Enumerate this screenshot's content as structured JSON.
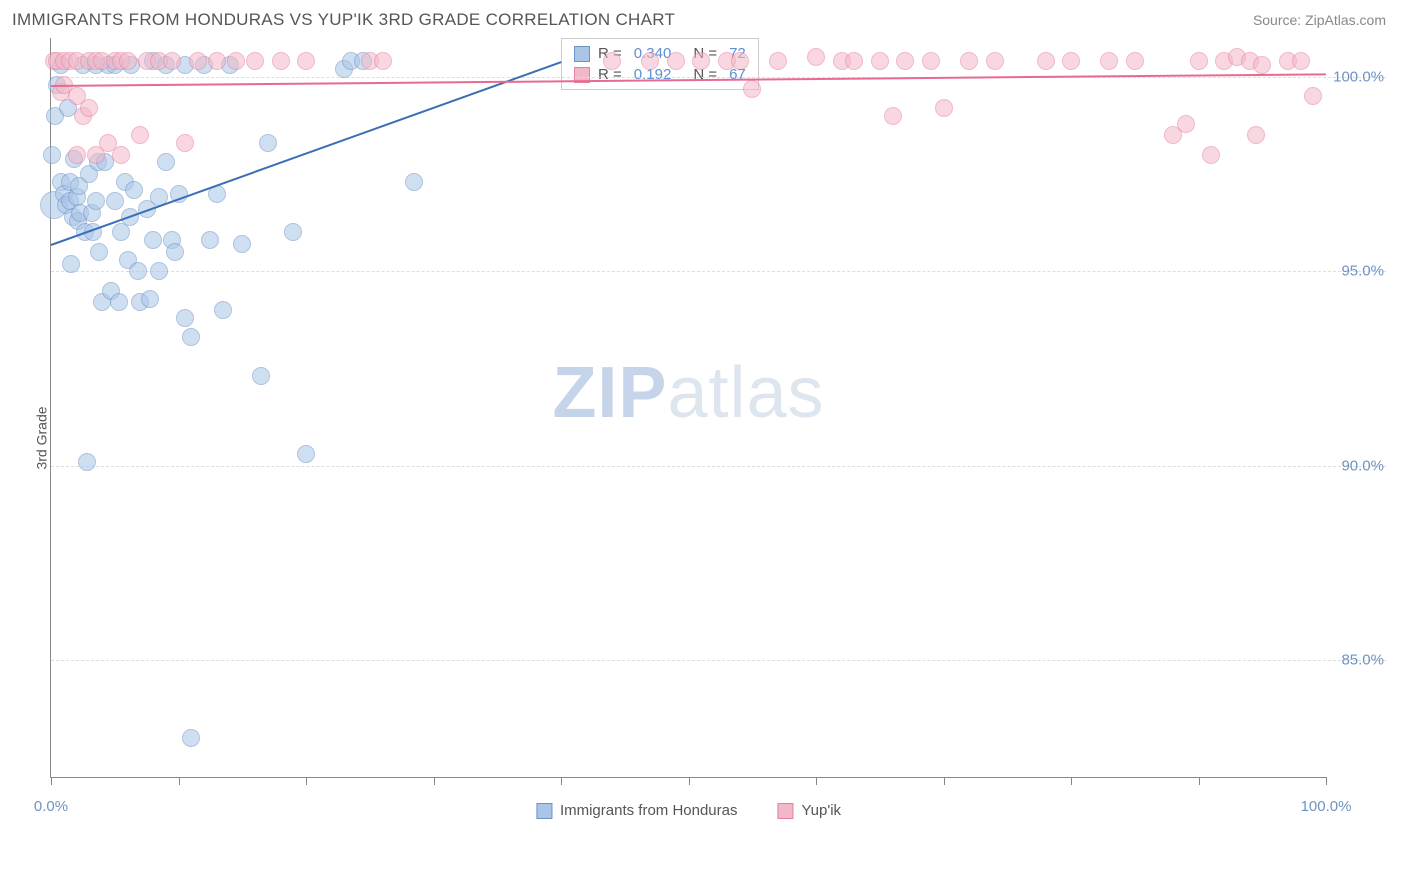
{
  "header": {
    "title": "IMMIGRANTS FROM HONDURAS VS YUP'IK 3RD GRADE CORRELATION CHART",
    "source": "Source: ZipAtlas.com"
  },
  "watermark": {
    "part1": "ZIP",
    "part2": "atlas"
  },
  "chart": {
    "type": "scatter-with-trend",
    "ylabel": "3rd Grade",
    "xlim": [
      0,
      100
    ],
    "ylim": [
      82,
      101
    ],
    "x_ticks": [
      0,
      10,
      20,
      30,
      40,
      50,
      60,
      70,
      80,
      90,
      100
    ],
    "x_tick_labels": {
      "0": "0.0%",
      "100": "100.0%"
    },
    "y_grid": [
      85,
      90,
      95,
      100
    ],
    "y_tick_labels": {
      "85": "85.0%",
      "90": "90.0%",
      "95": "95.0%",
      "100": "100.0%"
    },
    "background_color": "#ffffff",
    "grid_color": "#dddddd",
    "axis_color": "#888888",
    "series": [
      {
        "id": "honduras",
        "label": "Immigrants from Honduras",
        "fill": "#a9c5e8",
        "stroke": "#6d93c4",
        "fill_opacity": 0.55,
        "marker_radius": 9,
        "trend": {
          "x1": 0,
          "y1": 95.7,
          "x2": 40,
          "y2": 100.4,
          "color": "#3b6fb5",
          "width": 2
        },
        "R": "0.340",
        "N": "72",
        "points": [
          [
            0.1,
            98.0
          ],
          [
            0.2,
            96.7,
            14
          ],
          [
            0.3,
            99.0
          ],
          [
            0.5,
            99.8
          ],
          [
            0.8,
            97.3
          ],
          [
            0.8,
            100.3
          ],
          [
            1.0,
            97.0
          ],
          [
            1.2,
            96.7
          ],
          [
            1.3,
            99.2
          ],
          [
            1.5,
            96.8
          ],
          [
            1.5,
            97.3
          ],
          [
            1.6,
            95.2
          ],
          [
            1.7,
            96.4
          ],
          [
            1.8,
            97.9
          ],
          [
            2.0,
            96.9
          ],
          [
            2.1,
            96.3
          ],
          [
            2.2,
            97.2
          ],
          [
            2.3,
            96.5
          ],
          [
            2.5,
            100.3
          ],
          [
            2.7,
            96.0
          ],
          [
            2.8,
            90.1
          ],
          [
            3.0,
            97.5
          ],
          [
            3.2,
            96.5
          ],
          [
            3.3,
            96.0
          ],
          [
            3.5,
            100.3
          ],
          [
            3.5,
            96.8
          ],
          [
            3.7,
            97.8
          ],
          [
            3.8,
            95.5
          ],
          [
            4.0,
            94.2
          ],
          [
            4.2,
            97.8
          ],
          [
            4.5,
            100.3
          ],
          [
            4.7,
            94.5
          ],
          [
            5.0,
            96.8
          ],
          [
            5.0,
            100.3
          ],
          [
            5.3,
            94.2
          ],
          [
            5.5,
            96.0
          ],
          [
            5.8,
            97.3
          ],
          [
            6.0,
            95.3
          ],
          [
            6.2,
            96.4
          ],
          [
            6.3,
            100.3
          ],
          [
            6.5,
            97.1
          ],
          [
            6.8,
            95.0
          ],
          [
            7.0,
            94.2
          ],
          [
            7.5,
            96.6
          ],
          [
            7.8,
            94.3
          ],
          [
            8.0,
            95.8
          ],
          [
            8.0,
            100.4
          ],
          [
            8.5,
            96.9
          ],
          [
            8.5,
            95.0
          ],
          [
            9.0,
            97.8
          ],
          [
            9.0,
            100.3
          ],
          [
            9.5,
            95.8
          ],
          [
            9.7,
            95.5
          ],
          [
            10.0,
            97.0
          ],
          [
            10.5,
            93.8
          ],
          [
            10.5,
            100.3
          ],
          [
            11.0,
            93.3
          ],
          [
            11.0,
            83.0
          ],
          [
            12.0,
            100.3
          ],
          [
            12.5,
            95.8
          ],
          [
            13.0,
            97.0
          ],
          [
            13.5,
            94.0
          ],
          [
            14.0,
            100.3
          ],
          [
            15.0,
            95.7
          ],
          [
            16.5,
            92.3
          ],
          [
            17.0,
            98.3
          ],
          [
            19.0,
            96.0
          ],
          [
            20.0,
            90.3
          ],
          [
            23.0,
            100.2
          ],
          [
            23.5,
            100.4
          ],
          [
            24.5,
            100.4
          ],
          [
            28.5,
            97.3
          ]
        ]
      },
      {
        "id": "yupik",
        "label": "Yup'ik",
        "fill": "#f3b8c8",
        "stroke": "#e57f9e",
        "fill_opacity": 0.55,
        "marker_radius": 9,
        "trend": {
          "x1": 0,
          "y1": 99.8,
          "x2": 100,
          "y2": 100.1,
          "color": "#e86b8f",
          "width": 2
        },
        "R": "0.192",
        "N": "67",
        "points": [
          [
            0.2,
            100.4
          ],
          [
            0.5,
            100.4
          ],
          [
            0.8,
            99.6
          ],
          [
            1.0,
            99.8
          ],
          [
            1.0,
            100.4
          ],
          [
            1.5,
            100.4
          ],
          [
            2.0,
            100.4
          ],
          [
            2.0,
            99.5
          ],
          [
            2.0,
            98.0
          ],
          [
            2.5,
            99.0
          ],
          [
            3.0,
            100.4
          ],
          [
            3.0,
            99.2
          ],
          [
            3.5,
            100.4
          ],
          [
            3.5,
            98.0
          ],
          [
            4.0,
            100.4
          ],
          [
            4.5,
            98.3
          ],
          [
            5.0,
            100.4
          ],
          [
            5.5,
            100.4
          ],
          [
            5.5,
            98.0
          ],
          [
            6.0,
            100.4
          ],
          [
            7.0,
            98.5
          ],
          [
            7.5,
            100.4
          ],
          [
            8.5,
            100.4
          ],
          [
            9.5,
            100.4
          ],
          [
            10.5,
            98.3
          ],
          [
            11.5,
            100.4
          ],
          [
            13.0,
            100.4
          ],
          [
            14.5,
            100.4
          ],
          [
            16.0,
            100.4
          ],
          [
            18.0,
            100.4
          ],
          [
            20.0,
            100.4
          ],
          [
            25.0,
            100.4
          ],
          [
            26.0,
            100.4
          ],
          [
            44.0,
            100.4
          ],
          [
            47.0,
            100.4
          ],
          [
            49.0,
            100.4
          ],
          [
            51.0,
            100.4
          ],
          [
            53.0,
            100.4
          ],
          [
            54.0,
            100.4
          ],
          [
            55.0,
            99.7
          ],
          [
            57.0,
            100.4
          ],
          [
            60.0,
            100.5
          ],
          [
            62.0,
            100.4
          ],
          [
            63.0,
            100.4
          ],
          [
            65.0,
            100.4
          ],
          [
            66.0,
            99.0
          ],
          [
            67.0,
            100.4
          ],
          [
            69.0,
            100.4
          ],
          [
            70.0,
            99.2
          ],
          [
            72.0,
            100.4
          ],
          [
            74.0,
            100.4
          ],
          [
            78.0,
            100.4
          ],
          [
            80.0,
            100.4
          ],
          [
            83.0,
            100.4
          ],
          [
            85.0,
            100.4
          ],
          [
            88.0,
            98.5
          ],
          [
            89.0,
            98.8
          ],
          [
            90.0,
            100.4
          ],
          [
            91.0,
            98.0
          ],
          [
            92.0,
            100.4
          ],
          [
            93.0,
            100.5
          ],
          [
            94.0,
            100.4
          ],
          [
            94.5,
            98.5
          ],
          [
            95.0,
            100.3
          ],
          [
            97.0,
            100.4
          ],
          [
            98.0,
            100.4
          ],
          [
            99.0,
            99.5
          ]
        ]
      }
    ]
  },
  "legend_box": {
    "rows": [
      {
        "swatch_fill": "#a9c5e8",
        "swatch_stroke": "#6d93c4",
        "r_label": "R =",
        "r_val": "0.340",
        "n_label": "N =",
        "n_val": "72"
      },
      {
        "swatch_fill": "#f3b8c8",
        "swatch_stroke": "#e57f9e",
        "r_label": "R =",
        "r_val": " 0.192",
        "n_label": "N =",
        "n_val": "67"
      }
    ]
  },
  "bottom_legend": [
    {
      "swatch_fill": "#a9c5e8",
      "swatch_stroke": "#6d93c4",
      "label": "Immigrants from Honduras"
    },
    {
      "swatch_fill": "#f3b8c8",
      "swatch_stroke": "#e57f9e",
      "label": "Yup'ik"
    }
  ]
}
